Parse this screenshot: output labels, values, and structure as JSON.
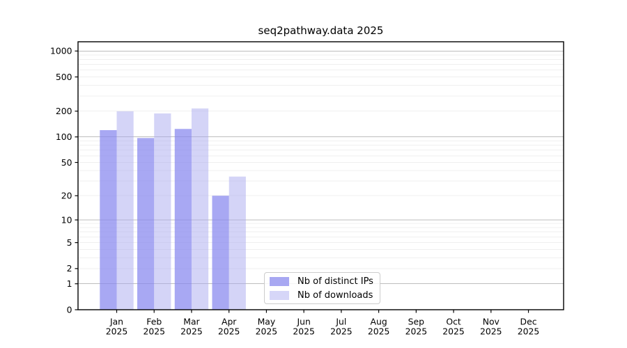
{
  "chart_data": {
    "type": "bar",
    "title": "seq2pathway.data 2025",
    "x_tick_months": [
      "Jan",
      "Feb",
      "Mar",
      "Apr",
      "May",
      "Jun",
      "Jul",
      "Aug",
      "Sep",
      "Oct",
      "Nov",
      "Dec"
    ],
    "x_tick_year": "2025",
    "y_ticks": [
      1000,
      500,
      200,
      100,
      50,
      20,
      10,
      5,
      2,
      1,
      0
    ],
    "y_scale": "log1p",
    "ylim": [
      0,
      1280
    ],
    "grid": "horizontal, major lines at 1/10/100/1000, faint minor lines",
    "legend_position": "inside lower-center",
    "series": [
      {
        "name": "Nb of distinct IPs",
        "legend_color": "#a8a8f2",
        "bar_fill": "rgba(134,134,238,0.72)",
        "values": [
          120,
          97,
          124,
          20,
          null,
          null,
          null,
          null,
          null,
          null,
          null,
          null
        ]
      },
      {
        "name": "Nb of downloads",
        "legend_color": "#d6d6f8",
        "bar_fill": "rgba(170,170,240,0.5)",
        "values": [
          199,
          188,
          215,
          34,
          null,
          null,
          null,
          null,
          null,
          null,
          null,
          null
        ]
      }
    ],
    "colors": {
      "axis": "#000000",
      "text": "#000000",
      "grid_major": "#bdbdbd",
      "grid_minor": "#efefef",
      "background": "#ffffff",
      "legend_border": "#cccccc"
    }
  }
}
